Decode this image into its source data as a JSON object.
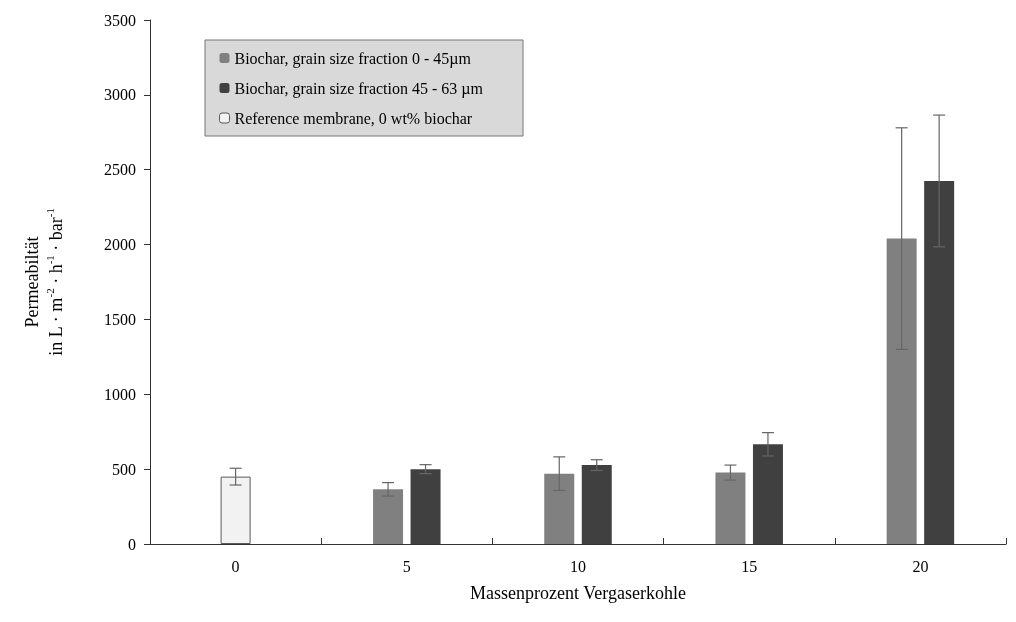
{
  "chart_data": {
    "type": "bar",
    "xlabel": "Massenprozent Vergaserkohle",
    "ylabel": "Permeabiltät\nin L · m$^{-2}$ · h$^{-1}$ · bar$^{-1}$",
    "categories": [
      "0",
      "5",
      "10",
      "15",
      "20"
    ],
    "series": [
      {
        "name": "Biochar, grain size fraction 0 - 45µm",
        "color": "#808080",
        "values": [
          null,
          365,
          470,
          477,
          2040
        ],
        "errors": [
          null,
          45,
          112,
          50,
          740
        ]
      },
      {
        "name": "Biochar, grain size fraction 45 - 63 µm",
        "color": "#404040",
        "values": [
          null,
          500,
          527,
          666,
          2425
        ],
        "errors": [
          null,
          30,
          36,
          78,
          440
        ]
      },
      {
        "name": "Reference membrane, 0 wt% biochar",
        "color": "#f2f2f2",
        "values": [
          450,
          null,
          null,
          null,
          null
        ],
        "errors": [
          56,
          null,
          null,
          null,
          null
        ]
      }
    ],
    "ylim": [
      0,
      3500
    ],
    "yticks": [
      0,
      500,
      1000,
      1500,
      2000,
      2500,
      3000,
      3500
    ],
    "grid": false,
    "legend": "top left"
  }
}
